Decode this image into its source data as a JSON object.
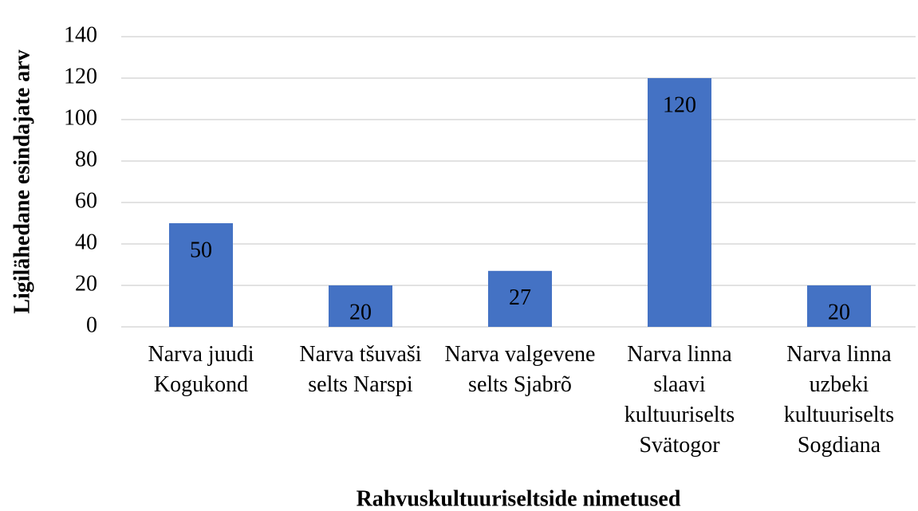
{
  "chart_data": {
    "type": "bar",
    "categories": [
      "Narva juudi Kogukond",
      "Narva tšuvaši selts Narspi",
      "Narva valgevene selts Sjabrõ",
      "Narva linna slaavi kultuuriselts Svätogor",
      "Narva linna uzbeki kultuuriselts Sogdiana"
    ],
    "values": [
      50,
      20,
      27,
      120,
      20
    ],
    "color": "#4472c4",
    "ylim": [
      0,
      140
    ],
    "yticks": [
      0,
      20,
      40,
      60,
      80,
      100,
      120,
      140
    ],
    "grid": true,
    "x_label": "Rahvuskultuuriseltside nimetused",
    "y_label": "Ligilähedane esindajate arv"
  }
}
